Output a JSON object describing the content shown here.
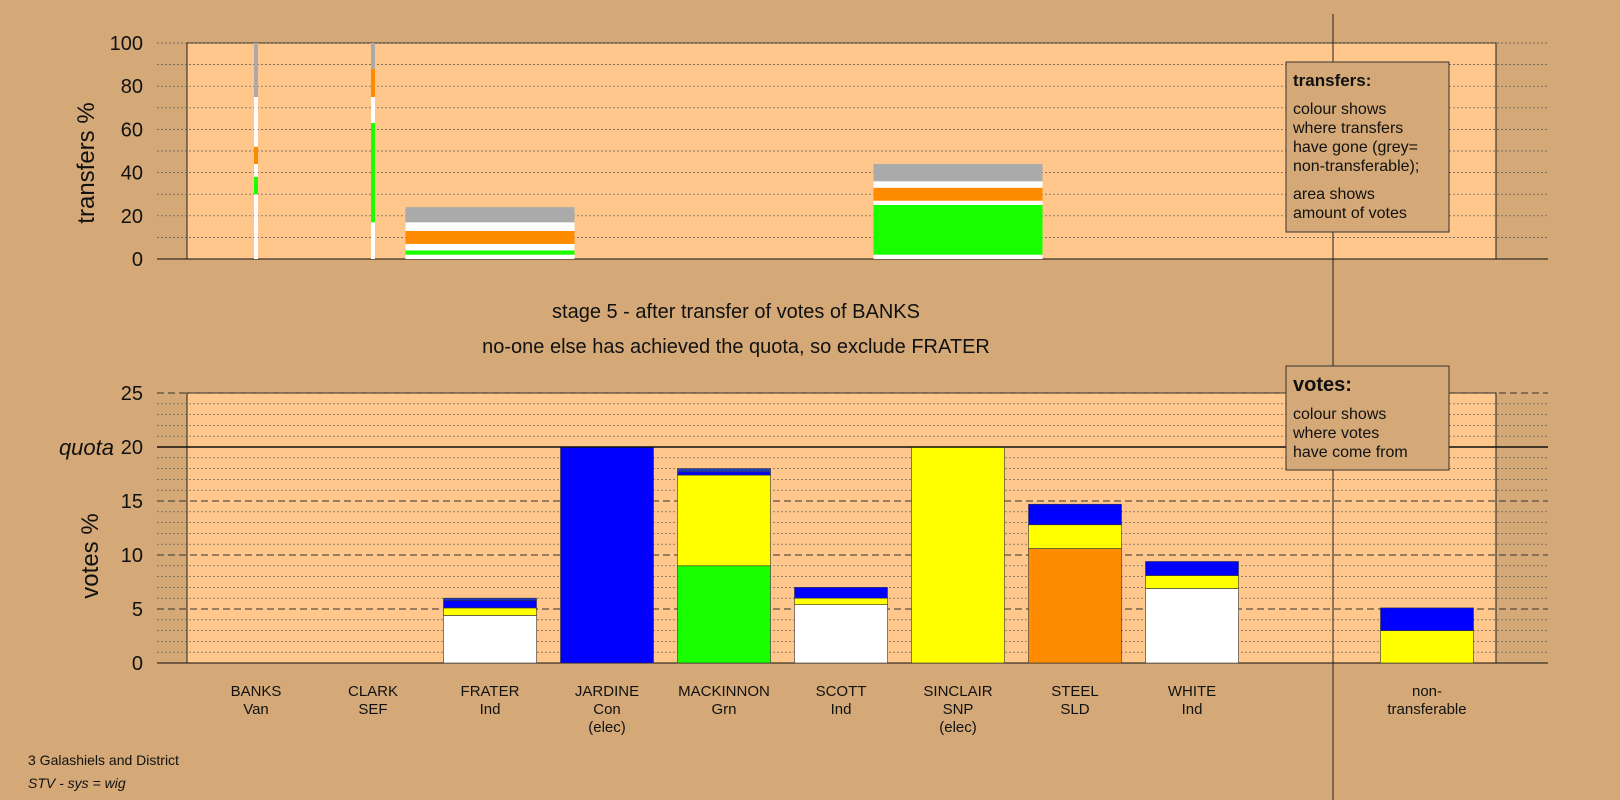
{
  "colors": {
    "background": "#d4a977",
    "plot_bg": "#ffc78b",
    "grey": "#aaaaaa",
    "white": "#ffffff",
    "orange": "#ff8c00",
    "green": "#1aff00",
    "blue": "#0000ff",
    "yellow": "#ffff00",
    "dark_blue": "#1a3ac8"
  },
  "stage_title": "stage 5 - after transfer of votes of BANKS",
  "stage_subtitle": "no-one else has achieved the quota, so exclude FRATER",
  "footer": {
    "constituency": "3 Galashiels and District",
    "system": "STV - sys = wig"
  },
  "transfers_legend": {
    "title": "transfers:",
    "lines_a": [
      "colour shows",
      "where transfers",
      "have gone (grey=",
      "non-transferable);"
    ],
    "lines_b": [
      "area shows",
      "amount of votes"
    ]
  },
  "votes_legend": {
    "title": "votes:",
    "lines": [
      "colour shows",
      "where votes",
      "have come from"
    ]
  },
  "chart_data": [
    {
      "type": "bar",
      "panel": "transfers",
      "ylabel": "transfers %",
      "ylim": [
        0,
        100
      ],
      "yticks": [
        0,
        20,
        40,
        60,
        80,
        100
      ],
      "grid": true,
      "columns": [
        {
          "candidate": "BANKS",
          "thin": true,
          "segments": [
            {
              "color": "white",
              "from": 0,
              "to": 30
            },
            {
              "color": "green",
              "from": 30,
              "to": 38
            },
            {
              "color": "white",
              "from": 38,
              "to": 44
            },
            {
              "color": "orange",
              "from": 44,
              "to": 52
            },
            {
              "color": "white",
              "from": 52,
              "to": 75
            },
            {
              "color": "grey",
              "from": 75,
              "to": 100
            }
          ]
        },
        {
          "candidate": "CLARK",
          "thin": true,
          "segments": [
            {
              "color": "white",
              "from": 0,
              "to": 17
            },
            {
              "color": "green",
              "from": 17,
              "to": 63
            },
            {
              "color": "white",
              "from": 63,
              "to": 75
            },
            {
              "color": "orange",
              "from": 75,
              "to": 88
            },
            {
              "color": "grey",
              "from": 88,
              "to": 100
            }
          ]
        },
        {
          "candidate": "FRATER",
          "thin": false,
          "segments": [
            {
              "color": "white",
              "from": 0,
              "to": 2
            },
            {
              "color": "green",
              "from": 2,
              "to": 4
            },
            {
              "color": "white",
              "from": 4,
              "to": 7
            },
            {
              "color": "orange",
              "from": 7,
              "to": 13
            },
            {
              "color": "white",
              "from": 13,
              "to": 17
            },
            {
              "color": "grey",
              "from": 17,
              "to": 24
            }
          ]
        },
        {
          "candidate": "SINCLAIR",
          "thin": false,
          "segments": [
            {
              "color": "white",
              "from": 0,
              "to": 2
            },
            {
              "color": "green",
              "from": 2,
              "to": 25
            },
            {
              "color": "white",
              "from": 25,
              "to": 27
            },
            {
              "color": "orange",
              "from": 27,
              "to": 33
            },
            {
              "color": "white",
              "from": 33,
              "to": 36
            },
            {
              "color": "grey",
              "from": 36,
              "to": 44
            }
          ]
        }
      ]
    },
    {
      "type": "bar",
      "panel": "votes",
      "stacked": true,
      "ylabel": "votes %",
      "ylim": [
        0,
        25
      ],
      "yticks": [
        0,
        5,
        10,
        15,
        20,
        25
      ],
      "quota": 20,
      "quota_label": "quota",
      "grid": true,
      "categories": [
        {
          "name": "BANKS",
          "party": "Van",
          "note": "",
          "segments": []
        },
        {
          "name": "CLARK",
          "party": "SEF",
          "note": "",
          "segments": []
        },
        {
          "name": "FRATER",
          "party": "Ind",
          "note": "",
          "segments": [
            {
              "color": "white",
              "value": 4.4
            },
            {
              "color": "yellow",
              "value": 0.7
            },
            {
              "color": "blue",
              "value": 0.7
            },
            {
              "color": "dark_blue",
              "value": 0.2
            }
          ]
        },
        {
          "name": "JARDINE",
          "party": "Con",
          "note": "(elec)",
          "segments": [
            {
              "color": "blue",
              "value": 20.0
            }
          ]
        },
        {
          "name": "MACKINNON",
          "party": "Grn",
          "note": "",
          "segments": [
            {
              "color": "green",
              "value": 9.0
            },
            {
              "color": "yellow",
              "value": 8.4
            },
            {
              "color": "blue",
              "value": 0.3
            },
            {
              "color": "dark_blue",
              "value": 0.3
            }
          ]
        },
        {
          "name": "SCOTT",
          "party": "Ind",
          "note": "",
          "segments": [
            {
              "color": "white",
              "value": 5.4
            },
            {
              "color": "yellow",
              "value": 0.6
            },
            {
              "color": "blue",
              "value": 1.0
            }
          ]
        },
        {
          "name": "SINCLAIR",
          "party": "SNP",
          "note": "(elec)",
          "segments": [
            {
              "color": "yellow",
              "value": 20.0
            }
          ]
        },
        {
          "name": "STEEL",
          "party": "SLD",
          "note": "",
          "segments": [
            {
              "color": "orange",
              "value": 10.6
            },
            {
              "color": "yellow",
              "value": 2.2
            },
            {
              "color": "blue",
              "value": 1.9
            }
          ]
        },
        {
          "name": "WHITE",
          "party": "Ind",
          "note": "",
          "segments": [
            {
              "color": "white",
              "value": 6.9
            },
            {
              "color": "yellow",
              "value": 1.2
            },
            {
              "color": "blue",
              "value": 1.3
            }
          ]
        },
        {
          "name": "non-",
          "party": "transferable",
          "note": "",
          "nontransferable": true,
          "segments": [
            {
              "color": "yellow",
              "value": 3.0
            },
            {
              "color": "blue",
              "value": 2.1
            }
          ]
        }
      ]
    }
  ]
}
